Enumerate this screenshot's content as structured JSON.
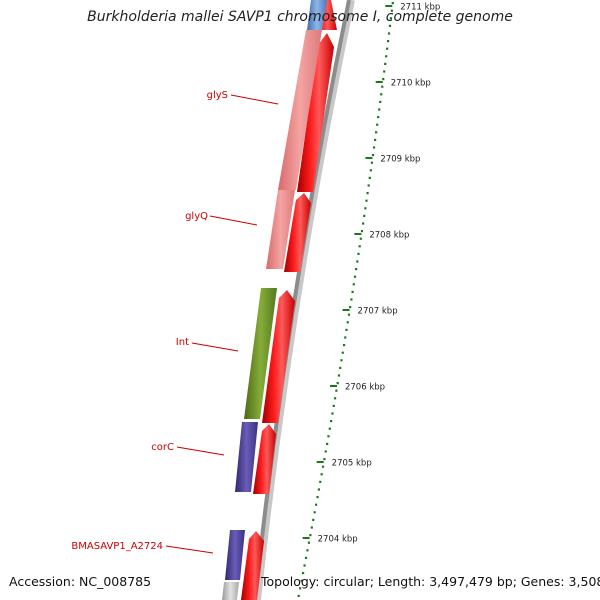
{
  "title": "Burkholderia mallei SAVP1 chromosome I, complete genome",
  "accession": "Accession: NC_008785",
  "topology": "Topology: circular; Length: 3,497,479 bp; Genes: 3,508",
  "colors": {
    "forward_cds": "#ff0000",
    "trna_feature": "#f08080",
    "integrase": "#6b8e23",
    "purple_feature": "#4b3f8f",
    "blue_feature": "#5b8fd0",
    "grey_feature": "#b8b8b8",
    "backbone": "#8c8c8c",
    "ruler": "#1a7a1a",
    "gene_label": "#cc0000"
  },
  "scale": {
    "unit": "kbp",
    "ticks": [
      {
        "label": "2711 kbp"
      },
      {
        "label": "2710 kbp"
      },
      {
        "label": "2709 kbp"
      },
      {
        "label": "2708 kbp"
      },
      {
        "label": "2707 kbp"
      },
      {
        "label": "2706 kbp"
      },
      {
        "label": "2705 kbp"
      },
      {
        "label": "2704 kbp"
      }
    ]
  },
  "gene_labels": [
    {
      "text": "glyS"
    },
    {
      "text": "glyQ"
    },
    {
      "text": "Int"
    },
    {
      "text": "corC"
    },
    {
      "text": "BMASAVP1_A2724"
    }
  ]
}
